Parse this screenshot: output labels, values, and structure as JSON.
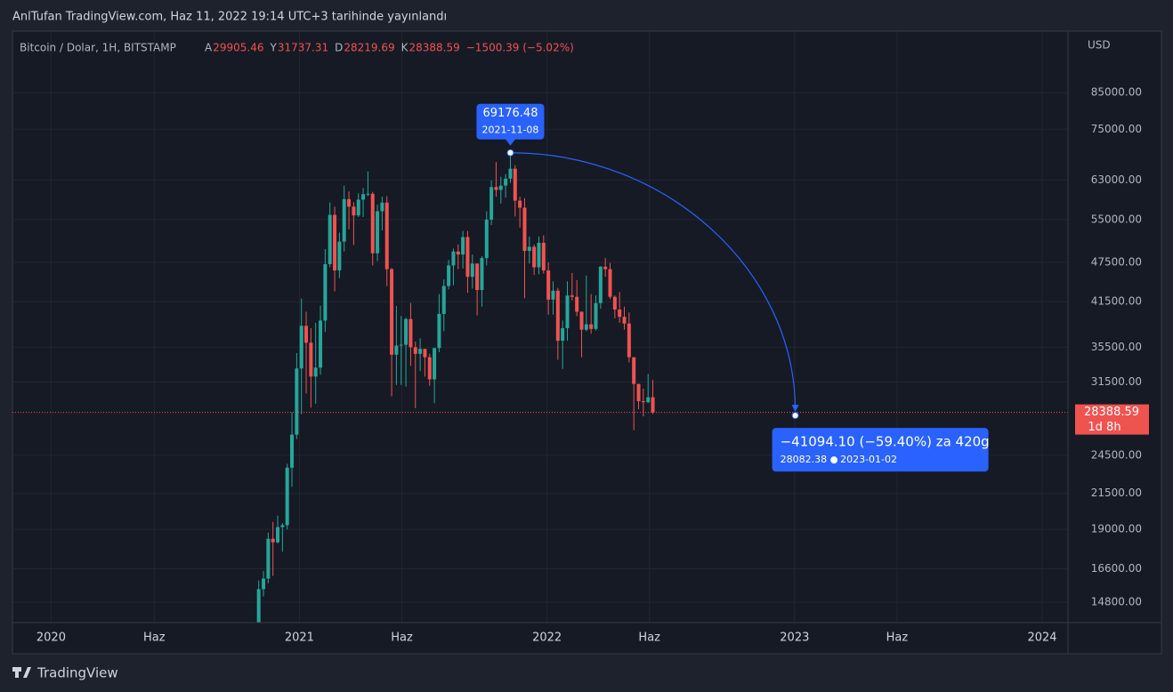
{
  "header": {
    "title": "AnlTufan TradingView.com, Haz 11, 2022 19:14 UTC+3 tarihinde yayınlandı"
  },
  "footer": {
    "brand": "TradingView"
  },
  "chart_data": {
    "type": "candlestick",
    "symbol": "Bitcoin / Dolar, 1H, BITSTAMP",
    "currency": "USD",
    "legend_letters": {
      "open": "A",
      "high": "Y",
      "low": "D",
      "close": "K"
    },
    "change": "−1500.39 (−5.02%)",
    "up_color": "#26a69a",
    "down_color": "#ef5350",
    "log_scale": true,
    "grid": true,
    "x": [
      "2020-11-02",
      "2020-11-09",
      "2020-11-16",
      "2020-11-23",
      "2020-11-30",
      "2020-12-07",
      "2020-12-14",
      "2020-12-21",
      "2020-12-28",
      "2021-01-04",
      "2021-01-11",
      "2021-01-18",
      "2021-01-25",
      "2021-02-01",
      "2021-02-08",
      "2021-02-15",
      "2021-02-22",
      "2021-03-01",
      "2021-03-08",
      "2021-03-15",
      "2021-03-22",
      "2021-03-29",
      "2021-04-05",
      "2021-04-12",
      "2021-04-19",
      "2021-04-26",
      "2021-05-03",
      "2021-05-10",
      "2021-05-17",
      "2021-05-24",
      "2021-05-31",
      "2021-06-07",
      "2021-06-14",
      "2021-06-21",
      "2021-06-28",
      "2021-07-05",
      "2021-07-12",
      "2021-07-19",
      "2021-07-26",
      "2021-08-02",
      "2021-08-09",
      "2021-08-16",
      "2021-08-23",
      "2021-08-30",
      "2021-09-06",
      "2021-09-13",
      "2021-09-20",
      "2021-09-27",
      "2021-10-04",
      "2021-10-11",
      "2021-10-18",
      "2021-10-25",
      "2021-11-01",
      "2021-11-08",
      "2021-11-15",
      "2021-11-22",
      "2021-11-29",
      "2021-12-06",
      "2021-12-13",
      "2021-12-20",
      "2021-12-27",
      "2022-01-03",
      "2022-01-10",
      "2022-01-17",
      "2022-01-24",
      "2022-01-31",
      "2022-02-07",
      "2022-02-14",
      "2022-02-21",
      "2022-02-28",
      "2022-03-07",
      "2022-03-14",
      "2022-03-21",
      "2022-03-28",
      "2022-04-04",
      "2022-04-11",
      "2022-04-18",
      "2022-04-25",
      "2022-05-02",
      "2022-05-09",
      "2022-05-16",
      "2022-05-23",
      "2022-05-30",
      "2022-06-06"
    ],
    "open": [
      13550,
      15480,
      16050,
      18400,
      18180,
      19150,
      19280,
      23480,
      26300,
      33000,
      38200,
      36050,
      32100,
      33100,
      38900,
      47200,
      55900,
      46200,
      51000,
      59000,
      57500,
      55800,
      58900,
      60000,
      60100,
      49000,
      56600,
      58300,
      46400,
      34600,
      35700,
      35800,
      39100,
      35500,
      34700,
      35300,
      34300,
      31800,
      35400,
      39800,
      43800,
      47000,
      49300,
      48800,
      51800,
      45200,
      47300,
      43200,
      48200,
      55000,
      61500,
      60900,
      61800,
      63300,
      65500,
      58700,
      57300,
      49400,
      50100,
      46700,
      50800,
      46200,
      41800,
      43100,
      36300,
      37900,
      42400,
      42200,
      40100,
      37700,
      38400,
      37800,
      41300,
      46800,
      46400,
      42200,
      40400,
      39400,
      38500,
      34300,
      31300,
      29500,
      29400,
      29905.46
    ],
    "high": [
      15950,
      16480,
      18800,
      19500,
      19920,
      19420,
      23800,
      28400,
      34800,
      41950,
      40100,
      37900,
      38600,
      40950,
      49700,
      58350,
      57500,
      52600,
      61800,
      60600,
      58400,
      60200,
      61300,
      64900,
      60500,
      57900,
      59500,
      59600,
      46600,
      40900,
      39500,
      39300,
      41300,
      36200,
      36600,
      35300,
      34700,
      35400,
      42600,
      44800,
      47900,
      49800,
      50500,
      52900,
      52900,
      48800,
      47300,
      48500,
      56600,
      62900,
      67000,
      63700,
      64300,
      69000,
      66300,
      59500,
      59200,
      51900,
      50500,
      51900,
      52100,
      47500,
      44500,
      43500,
      38900,
      44500,
      45800,
      44700,
      40100,
      45400,
      42600,
      42400,
      46900,
      48200,
      47400,
      42400,
      42900,
      40800,
      40000,
      34300,
      31300,
      30800,
      32400,
      31737.31
    ],
    "low": [
      13500,
      15100,
      15800,
      16200,
      18100,
      17600,
      19000,
      22000,
      25900,
      28200,
      30300,
      28850,
      29250,
      32300,
      37400,
      46700,
      43000,
      45000,
      49300,
      53200,
      50400,
      55500,
      55500,
      59600,
      47000,
      47700,
      53000,
      43800,
      30000,
      31200,
      31200,
      31000,
      33300,
      28800,
      32700,
      32100,
      31100,
      29300,
      34900,
      37500,
      43300,
      43900,
      46400,
      46500,
      42800,
      43400,
      39600,
      40800,
      47000,
      54000,
      59500,
      58100,
      59300,
      62400,
      55600,
      53500,
      42000,
      47300,
      45500,
      45600,
      45700,
      39700,
      39700,
      34000,
      32950,
      36300,
      41700,
      39500,
      34300,
      37500,
      37200,
      37600,
      40500,
      45200,
      41900,
      39200,
      38600,
      37700,
      33700,
      26700,
      28700,
      28000,
      29300,
      28219.69
    ],
    "close": [
      15480,
      16050,
      18400,
      18180,
      19150,
      19280,
      23480,
      26300,
      33000,
      38200,
      36050,
      32100,
      33100,
      38900,
      47200,
      55900,
      46200,
      51000,
      59000,
      57500,
      55800,
      58900,
      60000,
      60100,
      49000,
      56600,
      58300,
      46400,
      34600,
      35700,
      35800,
      39100,
      35500,
      34700,
      35300,
      34300,
      31800,
      35400,
      39800,
      43800,
      47000,
      49300,
      48800,
      51800,
      45200,
      47300,
      43200,
      48200,
      55000,
      61500,
      60900,
      61800,
      63300,
      65500,
      58700,
      57300,
      49400,
      50100,
      46700,
      50800,
      46200,
      41800,
      43100,
      36300,
      37900,
      42400,
      42200,
      40100,
      37700,
      38400,
      37800,
      41300,
      46800,
      46400,
      42200,
      40400,
      39400,
      38500,
      34300,
      31300,
      29500,
      29400,
      29900,
      28388.59
    ],
    "countdown": "1d 8h",
    "xlim": [
      "2019-11-05",
      "2024-02-08"
    ],
    "ylim": [
      13800,
      105000
    ],
    "xticks": [
      {
        "value": "2020-01-01",
        "label": "2020"
      },
      {
        "value": "2020-06-01",
        "label": "Haz"
      },
      {
        "value": "2021-01-01",
        "label": "2021"
      },
      {
        "value": "2021-06-01",
        "label": "Haz"
      },
      {
        "value": "2022-01-01",
        "label": "2022"
      },
      {
        "value": "2022-06-01",
        "label": "Haz"
      },
      {
        "value": "2023-01-01",
        "label": "2023"
      },
      {
        "value": "2023-06-01",
        "label": "Haz"
      },
      {
        "value": "2024-01-01",
        "label": "2024"
      }
    ],
    "yticks": [
      {
        "value": 85000,
        "label": "85000.00"
      },
      {
        "value": 75000,
        "label": "75000.00"
      },
      {
        "value": 63000,
        "label": "63000.00"
      },
      {
        "value": 55000,
        "label": "55000.00"
      },
      {
        "value": 47500,
        "label": "47500.00"
      },
      {
        "value": 41500,
        "label": "41500.00"
      },
      {
        "value": 35500,
        "label": "35500.00"
      },
      {
        "value": 31500,
        "label": "31500.00"
      },
      {
        "value": 24500,
        "label": "24500.00"
      },
      {
        "value": 21500,
        "label": "21500.00"
      },
      {
        "value": 19000,
        "label": "19000.00"
      },
      {
        "value": 16600,
        "label": "16600.00"
      },
      {
        "value": 14800,
        "label": "14800.00"
      }
    ],
    "annotation": {
      "start_price": 69176.48,
      "start_date": "2021-11-08",
      "end_price": 28082.38,
      "end_date": "2023-01-02",
      "change_label": "−41094.10 (−59.40%) za 420g",
      "color": "#2962ff"
    }
  }
}
